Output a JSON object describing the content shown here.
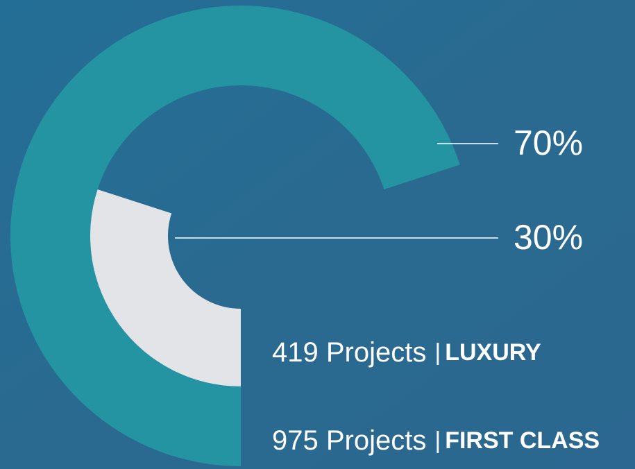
{
  "chart_data": {
    "type": "radial",
    "series": [
      {
        "name": "FIRST CLASS",
        "label": "975 Projects",
        "color": "#2494a2",
        "values": [
          70
        ],
        "value_labels": [
          "70%"
        ]
      },
      {
        "name": "LUXURY",
        "label": "419 Projects",
        "color": "#e2e4e7",
        "values": [
          30
        ],
        "value_labels": [
          "30%"
        ]
      }
    ],
    "separator": "|"
  }
}
